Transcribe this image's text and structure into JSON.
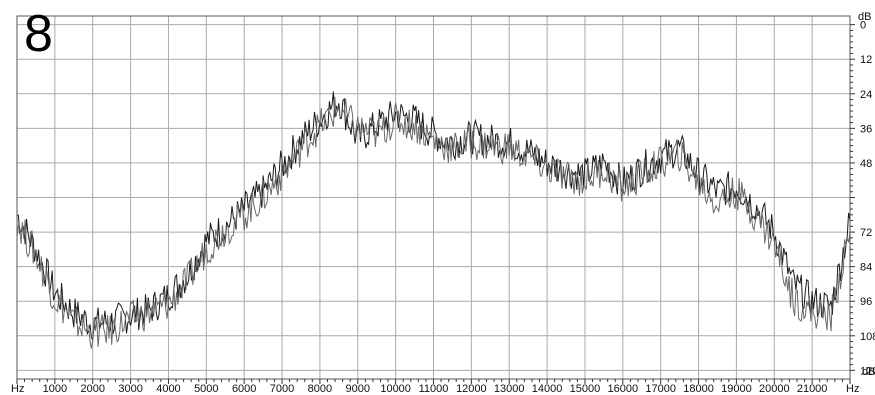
{
  "panel_number": "8",
  "chart_data": {
    "type": "line",
    "title": "",
    "xlabel": "",
    "ylabel": "",
    "x_unit": "Hz",
    "y_unit": "dB",
    "xlim": [
      0,
      22000
    ],
    "ylim": [
      -123,
      3
    ],
    "y_inverted_labels": true,
    "grid": true,
    "x_ticks": [
      1000,
      2000,
      3000,
      4000,
      5000,
      6000,
      7000,
      8000,
      9000,
      10000,
      11000,
      12000,
      13000,
      14000,
      15000,
      16000,
      17000,
      18000,
      19000,
      20000,
      21000
    ],
    "y_ticks": [
      0,
      12,
      24,
      36,
      48,
      60,
      72,
      84,
      96,
      108,
      120
    ],
    "y_tick_labels": [
      "0",
      "12",
      "24",
      "36",
      "48",
      "",
      "72",
      "84",
      "96",
      "108",
      "120"
    ],
    "series": [
      {
        "x": [
          0,
          500,
          1000,
          1500,
          2000,
          2500,
          3000,
          3500,
          4000,
          4500,
          5000,
          5500,
          6000,
          6500,
          7000,
          7500,
          8000,
          8500,
          9000,
          9500,
          10000,
          10500,
          11000,
          11500,
          12000,
          12500,
          13000,
          13500,
          14000,
          14500,
          15000,
          15500,
          16000,
          16500,
          17000,
          17500,
          18000,
          18500,
          19000,
          19500,
          20000,
          20500,
          21000,
          21500,
          22000
        ],
        "values": [
          -66,
          -78,
          -93,
          -100,
          -104,
          -103,
          -101,
          -99,
          -94,
          -87,
          -75,
          -70,
          -64,
          -58,
          -49,
          -40,
          -33,
          -26,
          -40,
          -35,
          -31,
          -33,
          -38,
          -41,
          -39,
          -40,
          -41,
          -44,
          -48,
          -51,
          -52,
          -48,
          -55,
          -50,
          -46,
          -43,
          -52,
          -58,
          -56,
          -63,
          -72,
          -90,
          -96,
          -98,
          -68
        ]
      },
      {
        "x": [
          0,
          500,
          1000,
          1500,
          2000,
          2500,
          3000,
          3500,
          4000,
          4500,
          5000,
          5500,
          6000,
          6500,
          7000,
          7500,
          8000,
          8500,
          9000,
          9500,
          10000,
          10500,
          11000,
          11500,
          12000,
          12500,
          13000,
          13500,
          14000,
          14500,
          15000,
          15500,
          16000,
          16500,
          17000,
          17500,
          18000,
          18500,
          19000,
          19500,
          20000,
          20500,
          21000,
          21500,
          22000
        ],
        "values": [
          -68,
          -80,
          -95,
          -103,
          -107,
          -106,
          -102,
          -100,
          -97,
          -89,
          -78,
          -71,
          -66,
          -60,
          -52,
          -43,
          -35,
          -29,
          -36,
          -38,
          -33,
          -35,
          -40,
          -43,
          -41,
          -42,
          -43,
          -46,
          -50,
          -53,
          -54,
          -50,
          -57,
          -52,
          -48,
          -45,
          -55,
          -62,
          -58,
          -66,
          -76,
          -95,
          -100,
          -101,
          -72
        ]
      }
    ]
  }
}
